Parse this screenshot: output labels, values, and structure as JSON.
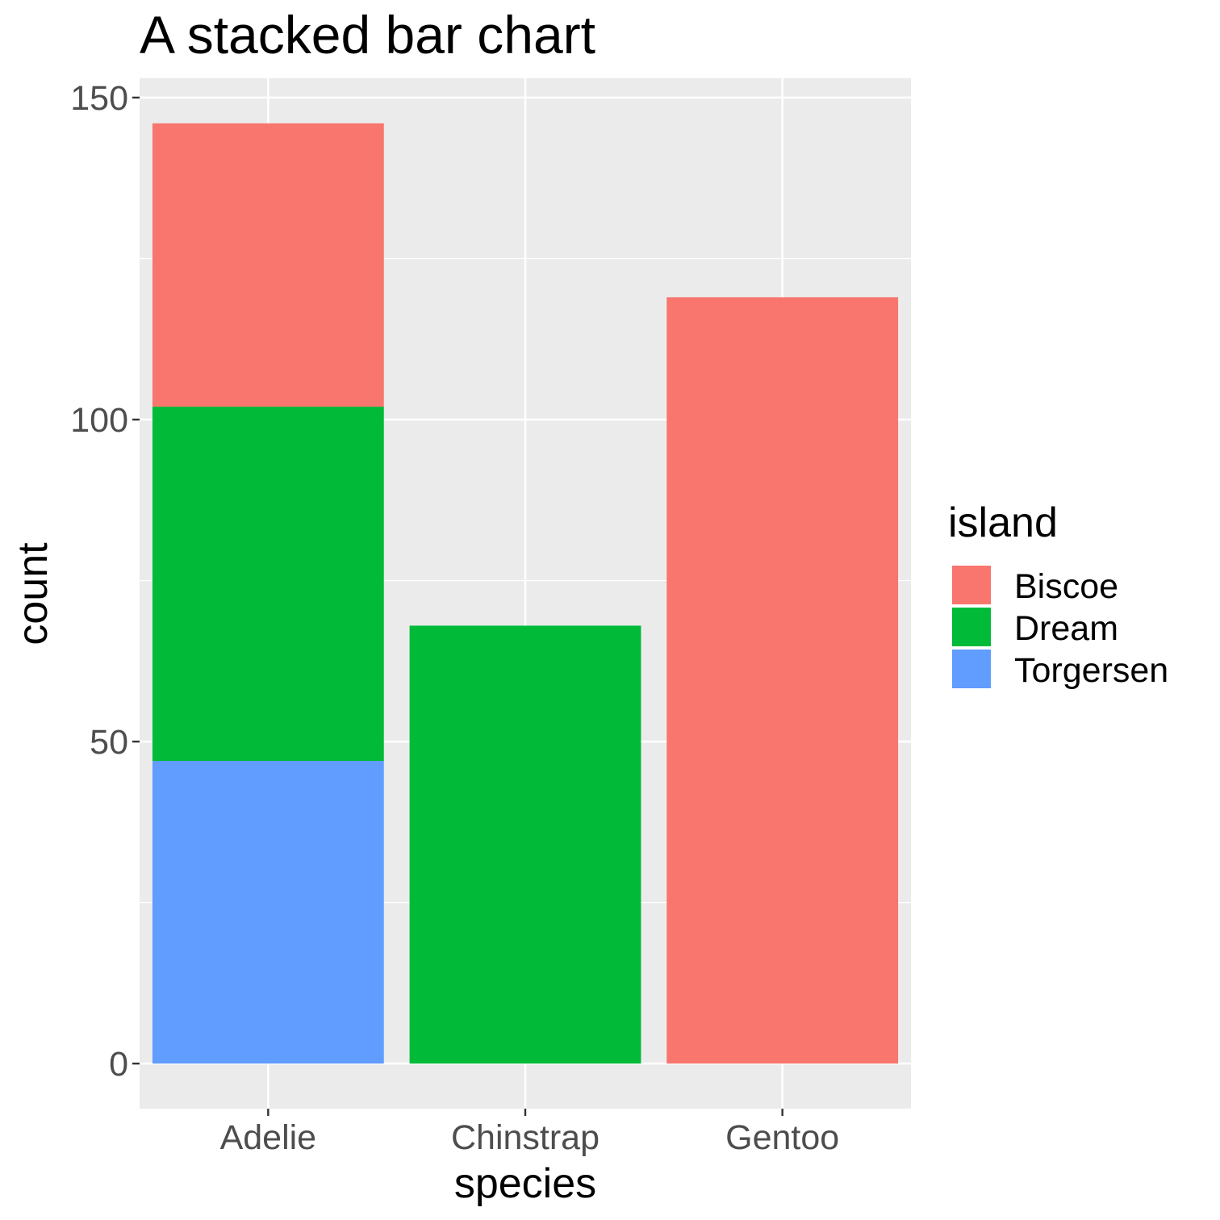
{
  "chart_data": {
    "type": "bar",
    "stacked": true,
    "title": "A stacked bar chart",
    "xlabel": "species",
    "ylabel": "count",
    "categories": [
      "Adelie",
      "Chinstrap",
      "Gentoo"
    ],
    "series": [
      {
        "name": "Biscoe",
        "color": "#F8766D",
        "values": [
          44,
          0,
          119
        ]
      },
      {
        "name": "Dream",
        "color": "#00BA38",
        "values": [
          55,
          68,
          0
        ]
      },
      {
        "name": "Torgersen",
        "color": "#619CFF",
        "values": [
          47,
          0,
          0
        ]
      }
    ],
    "stack_order_bottom_to_top": [
      "Torgersen",
      "Dream",
      "Biscoe"
    ],
    "ylim": [
      -7,
      153
    ],
    "yticks": [
      0,
      50,
      100,
      150
    ],
    "yticklabels": [
      "0",
      "50",
      "100",
      "150"
    ],
    "grid": true,
    "legend": {
      "title": "island",
      "placement": "right"
    },
    "colors": {
      "panel": "#EBEBEB",
      "grid": "#FFFFFF",
      "tick_text": "#4D4D4D"
    }
  }
}
